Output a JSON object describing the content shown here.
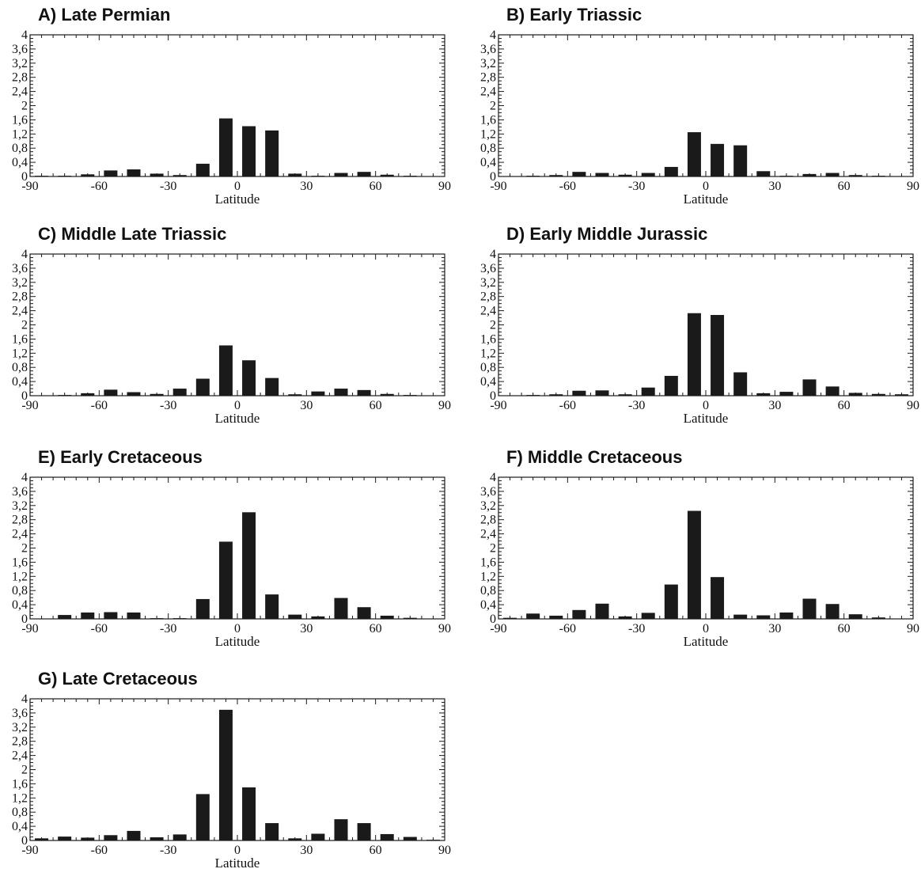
{
  "figure": {
    "y_ticks": [
      "0",
      "0,4",
      "0,8",
      "1,2",
      "1,6",
      "2",
      "2,4",
      "2,8",
      "3,2",
      "3,6",
      "4"
    ],
    "x_ticks": [
      "-90",
      "-60",
      "-30",
      "0",
      "30",
      "60",
      "90"
    ]
  },
  "chart_data": [
    {
      "type": "bar",
      "title": "A) Late Permian",
      "xlabel": "Latitude",
      "ylabel": "",
      "xlim": [
        -90,
        90
      ],
      "ylim": [
        0,
        4
      ],
      "x": [
        -85,
        -75,
        -65,
        -55,
        -45,
        -35,
        -25,
        -15,
        -5,
        5,
        15,
        25,
        35,
        45,
        55,
        65,
        75,
        85
      ],
      "values": [
        0.02,
        0.02,
        0.06,
        0.17,
        0.2,
        0.08,
        0.04,
        0.36,
        1.64,
        1.42,
        1.3,
        0.08,
        0.02,
        0.1,
        0.13,
        0.05,
        0.02,
        0.01
      ]
    },
    {
      "type": "bar",
      "title": "B) Early Triassic",
      "xlabel": "Latitude",
      "ylabel": "",
      "xlim": [
        -90,
        90
      ],
      "ylim": [
        0,
        4
      ],
      "x": [
        -85,
        -75,
        -65,
        -55,
        -45,
        -35,
        -25,
        -15,
        -5,
        5,
        15,
        25,
        35,
        45,
        55,
        65,
        75,
        85
      ],
      "values": [
        0.01,
        0.02,
        0.04,
        0.13,
        0.1,
        0.05,
        0.1,
        0.27,
        1.25,
        0.92,
        0.88,
        0.15,
        0.02,
        0.07,
        0.1,
        0.04,
        0.02,
        0.01
      ]
    },
    {
      "type": "bar",
      "title": "C) Middle Late Triassic",
      "xlabel": "Latitude",
      "ylabel": "",
      "xlim": [
        -90,
        90
      ],
      "ylim": [
        0,
        4
      ],
      "x": [
        -85,
        -75,
        -65,
        -55,
        -45,
        -35,
        -25,
        -15,
        -5,
        5,
        15,
        25,
        35,
        45,
        55,
        65,
        75,
        85
      ],
      "values": [
        0.01,
        0.02,
        0.07,
        0.17,
        0.1,
        0.05,
        0.2,
        0.48,
        1.42,
        1.0,
        0.5,
        0.04,
        0.12,
        0.2,
        0.16,
        0.05,
        0.02,
        0.01
      ]
    },
    {
      "type": "bar",
      "title": "D) Early Middle Jurassic",
      "xlabel": "Latitude",
      "ylabel": "",
      "xlim": [
        -90,
        90
      ],
      "ylim": [
        0,
        4
      ],
      "x": [
        -85,
        -75,
        -65,
        -55,
        -45,
        -35,
        -25,
        -15,
        -5,
        5,
        15,
        25,
        35,
        45,
        55,
        65,
        75,
        85
      ],
      "values": [
        0.01,
        0.02,
        0.04,
        0.14,
        0.15,
        0.04,
        0.23,
        0.56,
        2.33,
        2.28,
        0.66,
        0.07,
        0.11,
        0.46,
        0.26,
        0.08,
        0.05,
        0.04
      ]
    },
    {
      "type": "bar",
      "title": "E) Early Cretaceous",
      "xlabel": "Latitude",
      "ylabel": "",
      "xlim": [
        -90,
        90
      ],
      "ylim": [
        0,
        4
      ],
      "x": [
        -85,
        -75,
        -65,
        -55,
        -45,
        -35,
        -25,
        -15,
        -5,
        5,
        15,
        25,
        35,
        45,
        55,
        65,
        75,
        85
      ],
      "values": [
        0.01,
        0.11,
        0.18,
        0.19,
        0.18,
        0.02,
        0.02,
        0.56,
        2.18,
        3.01,
        0.69,
        0.12,
        0.07,
        0.59,
        0.33,
        0.09,
        0.03,
        0.01
      ]
    },
    {
      "type": "bar",
      "title": "F) Middle Cretaceous",
      "xlabel": "Latitude",
      "ylabel": "",
      "xlim": [
        -90,
        90
      ],
      "ylim": [
        0,
        4
      ],
      "x": [
        -85,
        -75,
        -65,
        -55,
        -45,
        -35,
        -25,
        -15,
        -5,
        5,
        15,
        25,
        35,
        45,
        55,
        65,
        75,
        85
      ],
      "values": [
        0.03,
        0.15,
        0.09,
        0.25,
        0.43,
        0.07,
        0.17,
        0.97,
        3.05,
        1.18,
        0.12,
        0.1,
        0.18,
        0.57,
        0.42,
        0.13,
        0.04,
        0.01
      ]
    },
    {
      "type": "bar",
      "title": "G) Late Cretaceous",
      "xlabel": "Latitude",
      "ylabel": "",
      "xlim": [
        -90,
        90
      ],
      "ylim": [
        0,
        4
      ],
      "x": [
        -85,
        -75,
        -65,
        -55,
        -45,
        -35,
        -25,
        -15,
        -5,
        5,
        15,
        25,
        35,
        45,
        55,
        65,
        75,
        85
      ],
      "values": [
        0.06,
        0.11,
        0.08,
        0.15,
        0.27,
        0.09,
        0.17,
        1.31,
        3.69,
        1.5,
        0.49,
        0.06,
        0.19,
        0.6,
        0.49,
        0.18,
        0.1,
        0.02
      ]
    }
  ]
}
